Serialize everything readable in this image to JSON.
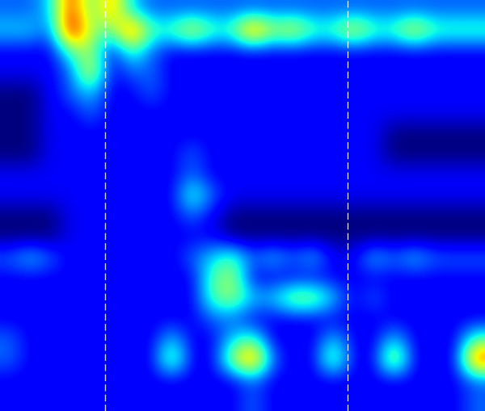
{
  "chart_data": {
    "type": "heatmap",
    "tick_labels": false,
    "cells": [
      [
        3,
        3,
        4,
        9,
        5,
        8,
        4,
        3,
        3,
        3,
        3,
        3,
        3,
        3,
        3,
        3,
        3,
        3,
        3,
        3,
        3,
        3,
        3,
        3
      ],
      [
        4,
        4,
        3,
        10,
        6,
        5,
        9,
        5,
        5,
        7,
        5,
        5,
        9,
        6,
        7,
        5,
        5,
        7,
        5,
        5,
        7,
        5,
        5,
        5
      ],
      [
        2,
        2,
        2,
        5,
        6,
        2,
        5,
        3,
        2,
        2,
        2,
        2,
        2,
        2,
        2,
        2,
        2,
        2,
        2,
        2,
        2,
        2,
        2,
        2
      ],
      [
        2,
        2,
        2,
        3,
        7,
        2,
        3,
        3,
        2,
        2,
        2,
        2,
        2,
        2,
        2,
        2,
        2,
        2,
        2,
        2,
        2,
        2,
        2,
        2
      ],
      [
        1,
        1,
        2,
        3,
        4,
        2,
        2,
        3,
        2,
        2,
        2,
        2,
        2,
        2,
        2,
        2,
        2,
        2,
        2,
        2,
        2,
        2,
        2,
        2
      ],
      [
        1,
        1,
        2,
        2,
        3,
        2,
        2,
        2,
        2,
        2,
        2,
        2,
        2,
        2,
        2,
        2,
        2,
        2,
        2,
        2,
        2,
        2,
        2,
        2
      ],
      [
        1,
        1,
        2,
        2,
        2,
        2,
        2,
        2,
        2,
        2,
        2,
        2,
        2,
        2,
        2,
        2,
        2,
        2,
        2,
        1,
        1,
        1,
        1,
        1
      ],
      [
        1,
        1,
        2,
        2,
        2,
        2,
        2,
        2,
        2,
        3,
        2,
        2,
        2,
        2,
        2,
        2,
        2,
        2,
        2,
        1,
        1,
        1,
        1,
        1
      ],
      [
        2,
        2,
        2,
        2,
        2,
        2,
        2,
        2,
        2,
        3,
        2,
        2,
        2,
        2,
        2,
        2,
        2,
        2,
        2,
        2,
        2,
        2,
        2,
        2
      ],
      [
        2,
        2,
        2,
        2,
        2,
        2,
        2,
        2,
        2,
        5,
        3,
        2,
        2,
        2,
        2,
        2,
        2,
        2,
        2,
        2,
        2,
        2,
        2,
        2
      ],
      [
        1,
        1,
        1,
        2,
        2,
        2,
        2,
        2,
        2,
        3,
        2,
        1,
        1,
        1,
        1,
        1,
        1,
        1,
        1,
        1,
        1,
        1,
        1,
        1
      ],
      [
        1,
        1,
        1,
        2,
        2,
        2,
        2,
        2,
        2,
        2,
        2,
        1,
        1,
        1,
        1,
        1,
        1,
        1,
        1,
        1,
        1,
        1,
        1,
        1
      ],
      [
        3,
        4,
        3,
        2,
        2,
        2,
        2,
        2,
        2,
        3,
        4,
        5,
        3,
        4,
        3,
        4,
        2,
        2,
        4,
        3,
        4,
        3,
        3,
        3
      ],
      [
        2,
        2,
        2,
        2,
        2,
        2,
        2,
        2,
        2,
        2,
        5,
        6,
        2,
        2,
        2,
        2,
        2,
        2,
        2,
        2,
        2,
        2,
        2,
        2
      ],
      [
        2,
        2,
        2,
        2,
        2,
        2,
        2,
        2,
        2,
        2,
        5,
        6,
        4,
        4,
        6,
        6,
        4,
        2,
        3,
        2,
        2,
        2,
        2,
        2
      ],
      [
        2,
        2,
        2,
        2,
        2,
        2,
        2,
        2,
        2,
        2,
        3,
        3,
        2,
        2,
        2,
        2,
        2,
        2,
        2,
        2,
        2,
        2,
        2,
        2
      ],
      [
        3,
        2,
        2,
        2,
        2,
        2,
        2,
        2,
        4,
        2,
        2,
        4,
        5,
        2,
        2,
        2,
        4,
        2,
        2,
        4,
        2,
        2,
        2,
        5
      ],
      [
        3,
        2,
        2,
        2,
        2,
        2,
        2,
        2,
        6,
        2,
        2,
        6,
        9,
        3,
        2,
        2,
        6,
        2,
        2,
        7,
        2,
        2,
        2,
        9
      ],
      [
        2,
        2,
        2,
        2,
        2,
        2,
        2,
        2,
        2,
        2,
        2,
        2,
        3,
        2,
        2,
        2,
        2,
        2,
        2,
        2,
        2,
        2,
        2,
        3
      ],
      [
        2,
        2,
        2,
        2,
        2,
        2,
        2,
        2,
        2,
        2,
        2,
        2,
        3,
        2,
        2,
        2,
        2,
        2,
        2,
        2,
        2,
        2,
        2,
        3
      ]
    ],
    "vlines": [
      4.7,
      16.7
    ]
  }
}
